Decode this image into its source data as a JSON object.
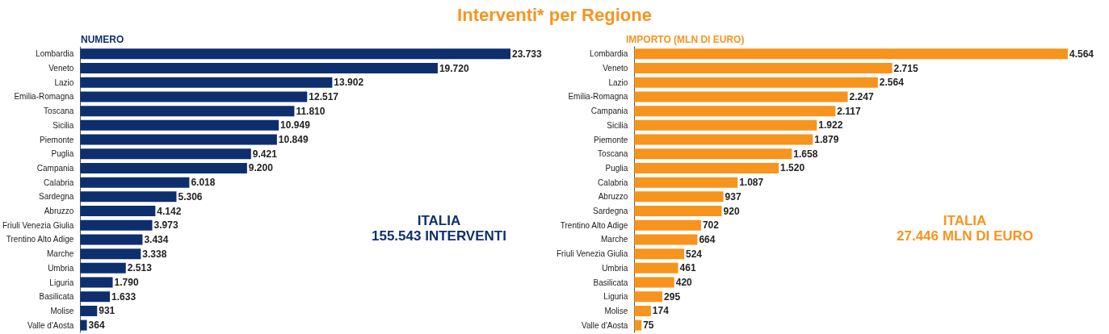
{
  "chart_data": [
    {
      "type": "bar",
      "orientation": "horizontal",
      "title": "Interventi* per Regione",
      "subtitle": "NUMERO",
      "categories": [
        "Lombardia",
        "Veneto",
        "Lazio",
        "Emilia-Romagna",
        "Toscana",
        "Sicilia",
        "Piemonte",
        "Puglia",
        "Campania",
        "Calabria",
        "Sardegna",
        "Abruzzo",
        "Friuli Venezia Giulia",
        "Trentino Alto Adige",
        "Marche",
        "Umbria",
        "Liguria",
        "Basilicata",
        "Molise",
        "Valle d'Aosta"
      ],
      "values": [
        23733,
        19720,
        13902,
        12517,
        11810,
        10949,
        10849,
        9421,
        9200,
        6018,
        5306,
        4142,
        3973,
        3434,
        3338,
        2513,
        1790,
        1633,
        931,
        364
      ],
      "value_labels": [
        "23.733",
        "19.720",
        "13.902",
        "12.517",
        "11.810",
        "10.949",
        "10.849",
        "9.421",
        "9.200",
        "6.018",
        "5.306",
        "4.142",
        "3.973",
        "3.434",
        "3.338",
        "2.513",
        "1.790",
        "1.633",
        "931",
        "364"
      ],
      "color": "#0e2f6e",
      "annotations": [
        "ITALIA\n155.543 INTERVENTI"
      ]
    },
    {
      "type": "bar",
      "orientation": "horizontal",
      "subtitle": "IMPORTO (MLN DI EURO)",
      "categories": [
        "Lombardia",
        "Veneto",
        "Lazio",
        "Emilia-Romagna",
        "Campania",
        "Sicilia",
        "Piemonte",
        "Toscana",
        "Puglia",
        "Calabria",
        "Abruzzo",
        "Sardegna",
        "Trentino Alto Adige",
        "Marche",
        "Friuli Venezia Giulia",
        "Umbria",
        "Basilicata",
        "Liguria",
        "Molise",
        "Valle d'Aosta"
      ],
      "values": [
        4564,
        2715,
        2564,
        2247,
        2117,
        1922,
        1879,
        1658,
        1520,
        1087,
        937,
        920,
        702,
        664,
        524,
        461,
        420,
        295,
        174,
        75
      ],
      "value_labels": [
        "4.564",
        "2.715",
        "2.564",
        "2.247",
        "2.117",
        "1.922",
        "1.879",
        "1.658",
        "1.520",
        "1.087",
        "937",
        "920",
        "702",
        "664",
        "524",
        "461",
        "420",
        "295",
        "174",
        "75"
      ],
      "color": "#f7941d",
      "annotations": [
        "ITALIA\n27.446 MLN DI EURO"
      ]
    }
  ]
}
